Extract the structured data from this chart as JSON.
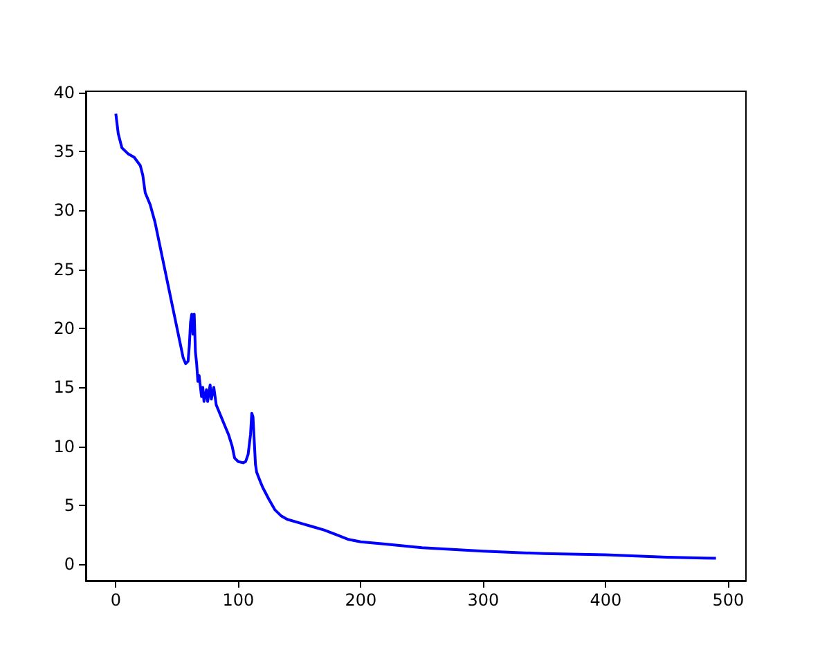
{
  "chart_data": {
    "type": "line",
    "x": [
      0,
      2,
      5,
      10,
      15,
      20,
      22,
      24,
      28,
      32,
      36,
      40,
      44,
      48,
      52,
      55,
      57,
      59,
      60,
      61,
      62,
      63,
      64,
      65,
      66,
      67,
      68,
      70,
      71,
      72,
      74,
      75,
      77,
      78,
      80,
      82,
      84,
      86,
      88,
      90,
      92,
      95,
      97,
      100,
      104,
      106,
      108,
      110,
      111,
      112,
      113,
      114,
      115,
      118,
      120,
      125,
      130,
      135,
      140,
      150,
      160,
      170,
      180,
      190,
      200,
      220,
      250,
      300,
      350,
      400,
      450,
      490
    ],
    "series": [
      {
        "color": "#0000ff",
        "values": [
          38.2,
          36.5,
          35.3,
          34.8,
          34.5,
          33.8,
          33.0,
          31.5,
          30.5,
          29,
          27,
          25,
          23,
          21,
          19,
          17.5,
          17,
          17.2,
          18.5,
          20.5,
          21.2,
          19.5,
          21.2,
          18,
          17,
          15.5,
          16,
          14.2,
          15,
          13.8,
          14.8,
          13.8,
          15.2,
          14,
          15,
          13.5,
          13,
          12.5,
          12,
          11.5,
          11,
          10,
          9,
          8.7,
          8.6,
          8.7,
          9.3,
          11,
          12.8,
          12.5,
          10.5,
          8.5,
          7.8,
          7,
          6.5,
          5.5,
          4.6,
          4.1,
          3.8,
          3.5,
          3.2,
          2.9,
          2.5,
          2.1,
          1.9,
          1.7,
          1.4,
          1.1,
          0.9,
          0.8,
          0.6,
          0.5
        ]
      }
    ],
    "xlim": [
      -24.5,
      514.5
    ],
    "ylim": [
      -1.4,
      40.1
    ],
    "xticks": [
      0,
      100,
      200,
      300,
      400,
      500
    ],
    "yticks": [
      0,
      5,
      10,
      15,
      20,
      25,
      30,
      35,
      40
    ],
    "grid": false,
    "marker": "none",
    "line_style": "solid"
  }
}
